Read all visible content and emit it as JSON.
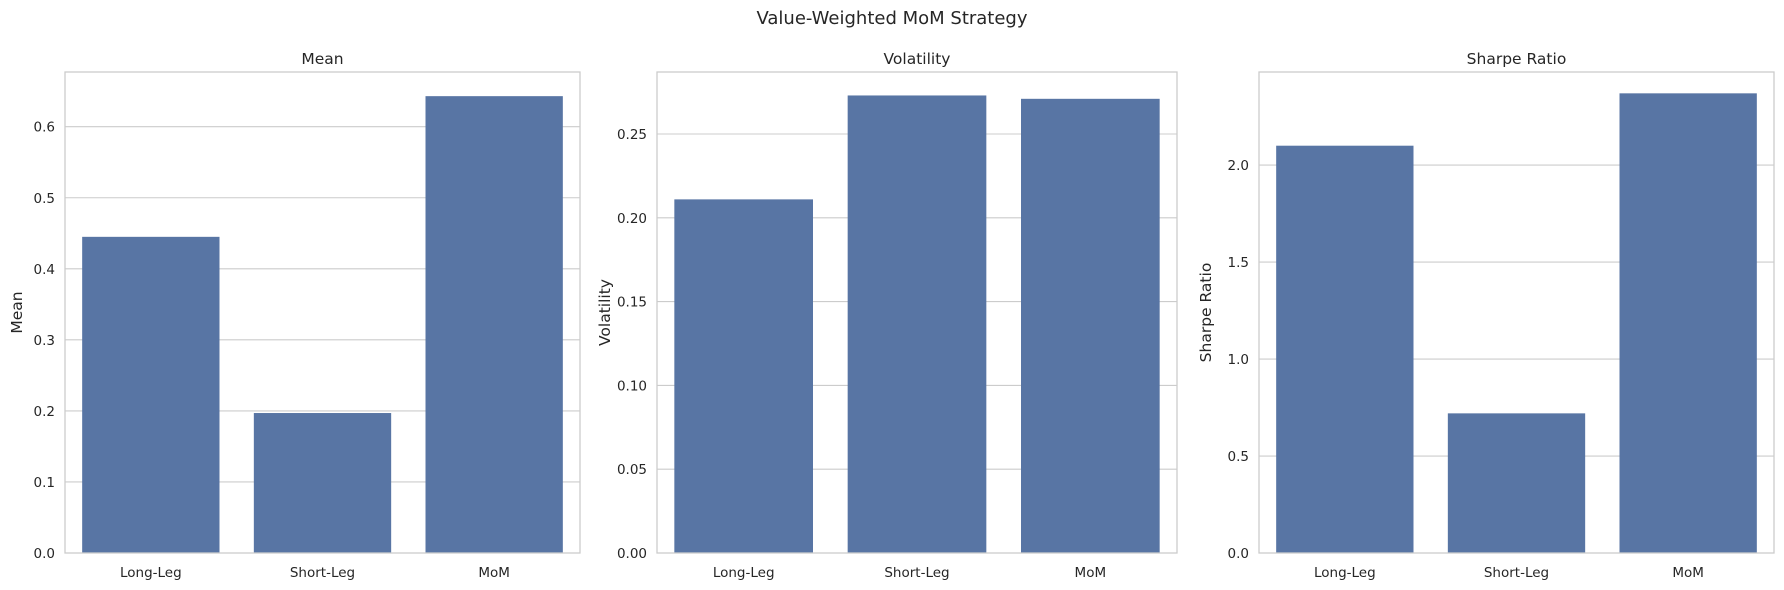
{
  "title": "Value-Weighted MoM Strategy",
  "bar_color": "#5875a4",
  "chart_data": [
    {
      "type": "bar",
      "title": "Mean",
      "ylabel": "Mean",
      "categories": [
        "Long-Leg",
        "Short-Leg",
        "MoM"
      ],
      "values": [
        0.445,
        0.197,
        0.643
      ],
      "ylim": [
        0,
        0.677
      ],
      "yticks": [
        0.0,
        0.1,
        0.2,
        0.3,
        0.4,
        0.5,
        0.6
      ],
      "ytick_labels": [
        "0.0",
        "0.1",
        "0.2",
        "0.3",
        "0.4",
        "0.5",
        "0.6"
      ],
      "grid": true
    },
    {
      "type": "bar",
      "title": "Volatility",
      "ylabel": "Volatility",
      "categories": [
        "Long-Leg",
        "Short-Leg",
        "MoM"
      ],
      "values": [
        0.211,
        0.273,
        0.271
      ],
      "ylim": [
        0,
        0.287
      ],
      "yticks": [
        0.0,
        0.05,
        0.1,
        0.15,
        0.2,
        0.25
      ],
      "ytick_labels": [
        "0.00",
        "0.05",
        "0.10",
        "0.15",
        "0.20",
        "0.25"
      ],
      "grid": true
    },
    {
      "type": "bar",
      "title": "Sharpe Ratio",
      "ylabel": "Sharpe Ratio",
      "categories": [
        "Long-Leg",
        "Short-Leg",
        "MoM"
      ],
      "values": [
        2.1,
        0.72,
        2.37
      ],
      "ylim": [
        0,
        2.48
      ],
      "yticks": [
        0.0,
        0.5,
        1.0,
        1.5,
        2.0
      ],
      "ytick_labels": [
        "0.0",
        "0.5",
        "1.0",
        "1.5",
        "2.0"
      ],
      "grid": true
    }
  ]
}
